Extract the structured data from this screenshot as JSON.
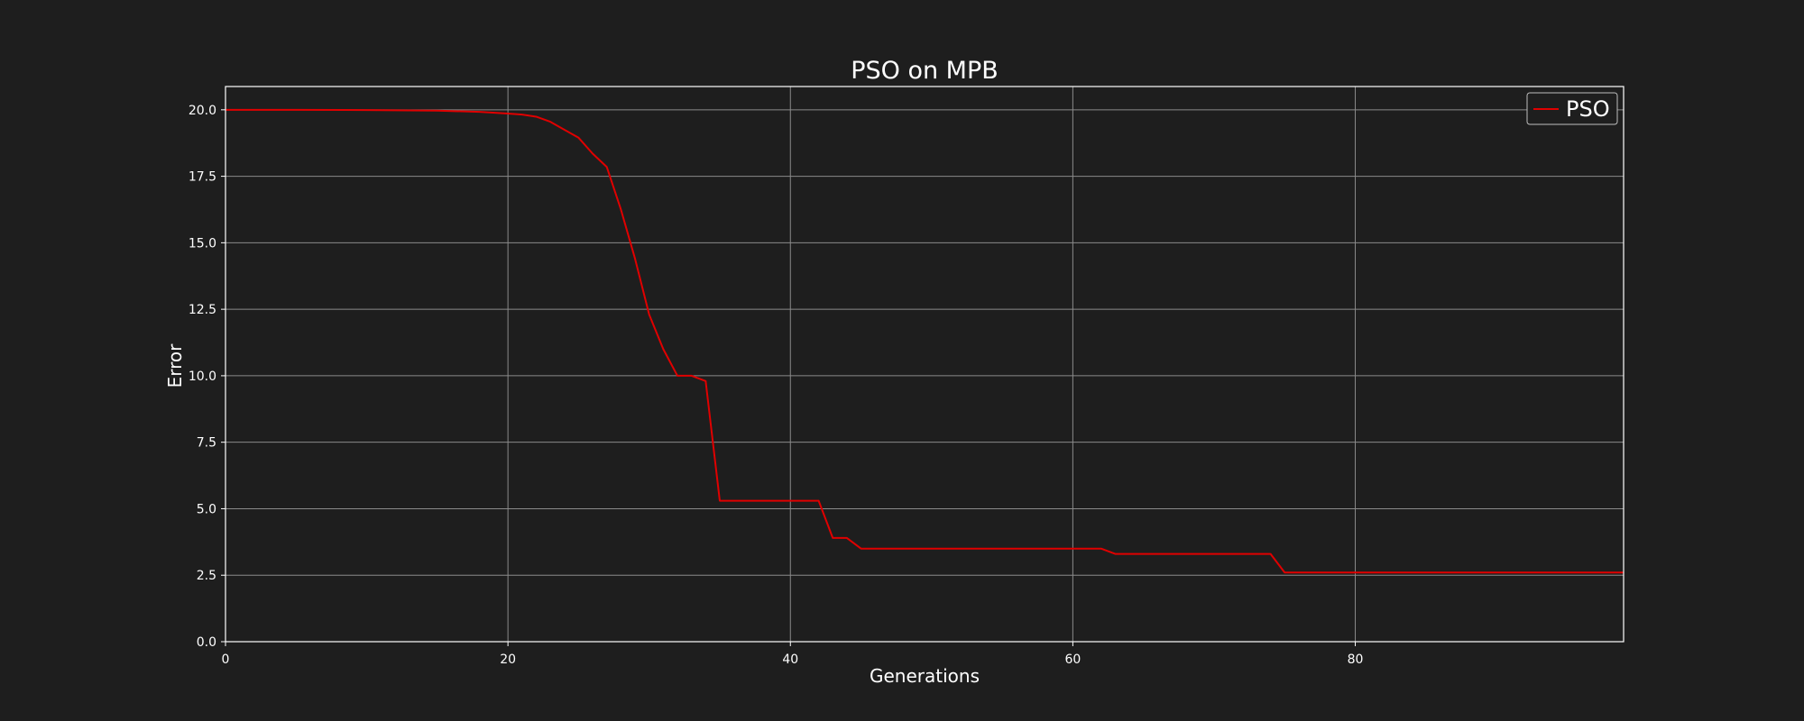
{
  "chart_data": {
    "type": "line",
    "title": "PSO on MPB",
    "xlabel": "Generations",
    "ylabel": "Error",
    "xlim": [
      0,
      99
    ],
    "ylim": [
      0,
      20.875
    ],
    "x_ticks": [
      0,
      20,
      40,
      60,
      80
    ],
    "y_ticks": [
      0.0,
      2.5,
      5.0,
      7.5,
      10.0,
      12.5,
      15.0,
      17.5,
      20.0
    ],
    "x_tick_labels": [
      "0",
      "20",
      "40",
      "60",
      "80"
    ],
    "y_tick_labels": [
      "0.0",
      "2.5",
      "5.0",
      "7.5",
      "10.0",
      "12.5",
      "15.0",
      "17.5",
      "20.0"
    ],
    "grid": true,
    "legend_position": "top-right",
    "colors": {
      "background": "#1e1e1e",
      "axes": "#ffffff",
      "grid": "#8a8a8a",
      "text": "#ffffff"
    },
    "series": [
      {
        "name": "PSO",
        "color": "#e00000",
        "points": [
          [
            0,
            20.0
          ],
          [
            5,
            20.0
          ],
          [
            10,
            19.99
          ],
          [
            15,
            19.97
          ],
          [
            18,
            19.92
          ],
          [
            20,
            19.86
          ],
          [
            21,
            19.82
          ],
          [
            22,
            19.74
          ],
          [
            23,
            19.55
          ],
          [
            24,
            19.25
          ],
          [
            25,
            18.95
          ],
          [
            26,
            18.35
          ],
          [
            27,
            17.85
          ],
          [
            28,
            16.25
          ],
          [
            29,
            14.4
          ],
          [
            30,
            12.3
          ],
          [
            31,
            11.0
          ],
          [
            32,
            10.0
          ],
          [
            33,
            10.0
          ],
          [
            34,
            9.8
          ],
          [
            35,
            5.3
          ],
          [
            36,
            5.3
          ],
          [
            42,
            5.3
          ],
          [
            43,
            3.9
          ],
          [
            44,
            3.9
          ],
          [
            45,
            3.5
          ],
          [
            50,
            3.5
          ],
          [
            62,
            3.5
          ],
          [
            63,
            3.3
          ],
          [
            70,
            3.3
          ],
          [
            74,
            3.3
          ],
          [
            75,
            2.6
          ],
          [
            80,
            2.6
          ],
          [
            99,
            2.6
          ]
        ]
      }
    ]
  }
}
